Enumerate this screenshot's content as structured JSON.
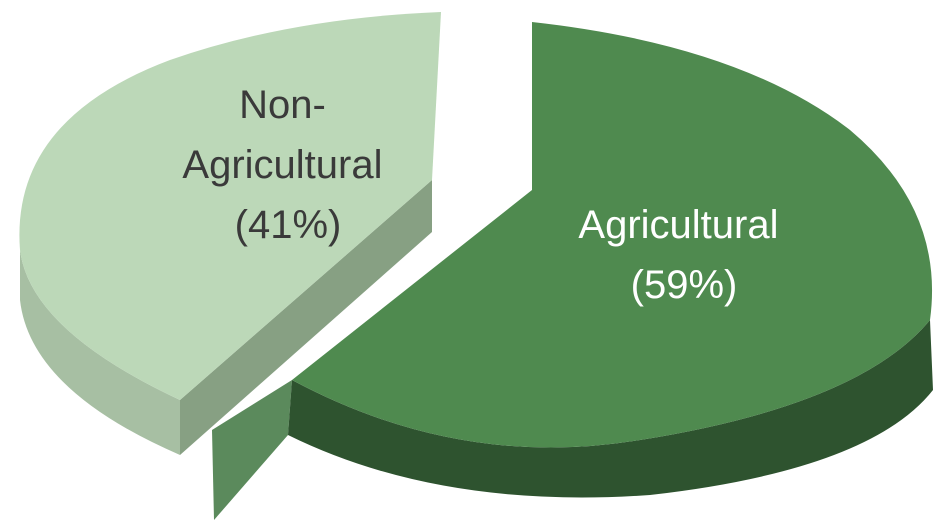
{
  "chart_data": {
    "type": "pie",
    "style": "3d-exploded",
    "title": "",
    "slices": [
      {
        "name": "Agricultural",
        "value": 59,
        "label_lines": [
          "Agricultural",
          "(59%)"
        ],
        "color": "#4f8a4f",
        "label_color": "#ffffff"
      },
      {
        "name": "Non-Agricultural",
        "value": 41,
        "label_lines": [
          "Non-",
          "Agricultural",
          "(41%)"
        ],
        "color": "#bcd8b8",
        "label_color": "#3a3a3a"
      }
    ]
  }
}
